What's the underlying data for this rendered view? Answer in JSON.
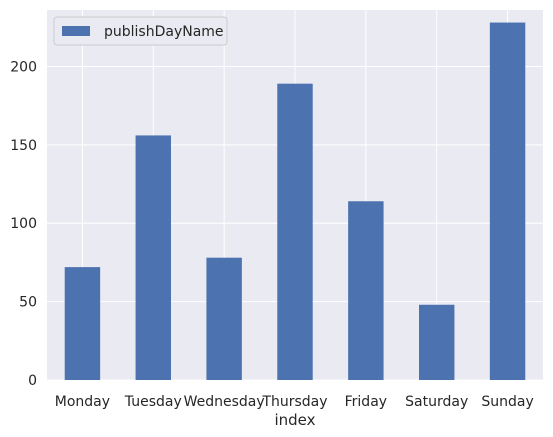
{
  "chart_data": {
    "type": "bar",
    "categories": [
      "Monday",
      "Tuesday",
      "Wednesday",
      "Thursday",
      "Friday",
      "Saturday",
      "Sunday"
    ],
    "series": [
      {
        "name": "publishDayName",
        "values": [
          72,
          156,
          78,
          189,
          114,
          48,
          228
        ],
        "color": "#4c72b0"
      }
    ],
    "title": "",
    "xlabel": "index",
    "ylabel": "",
    "ylim": [
      0,
      236
    ],
    "yticks": [
      0,
      50,
      100,
      150,
      200
    ],
    "grid": true,
    "legend_position": "top-left",
    "background_color": "#eaeaf2",
    "grid_color": "#ffffff"
  }
}
